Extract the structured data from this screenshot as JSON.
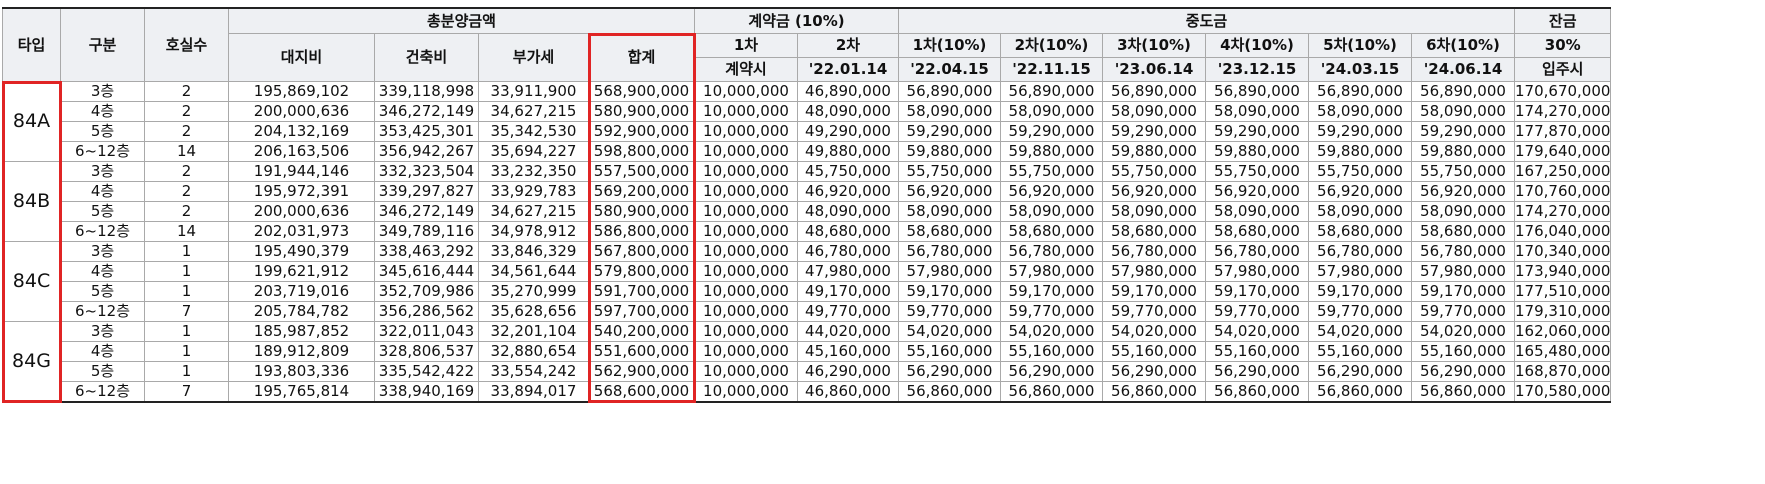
{
  "header": {
    "type": "타입",
    "gubun": "구분",
    "units": "호실수",
    "total_group": "총분양금액",
    "land": "대지비",
    "building": "건축비",
    "vat": "부가세",
    "sum": "합계",
    "deposit_group": "계약금  (10%)",
    "dep1": "1차",
    "dep1_sub": "계약시",
    "dep2": "2차",
    "dep2_sub": "'22.01.14",
    "mid_group": "중도금",
    "mid": [
      {
        "label": "1차(10%)",
        "date": "'22.04.15"
      },
      {
        "label": "2차(10%)",
        "date": "'22.11.15"
      },
      {
        "label": "3차(10%)",
        "date": "'23.06.14"
      },
      {
        "label": "4차(10%)",
        "date": "'23.12.15"
      },
      {
        "label": "5차(10%)",
        "date": "'24.03.15"
      },
      {
        "label": "6차(10%)",
        "date": "'24.06.14"
      }
    ],
    "balance_group": "잔금",
    "balance_pct": "30%",
    "balance_sub": "입주시"
  },
  "groups": [
    {
      "type": "84A",
      "rows": [
        [
          "3층",
          "2",
          "195,869,102",
          "339,118,998",
          "33,911,900",
          "568,900,000",
          "10,000,000",
          "46,890,000",
          "56,890,000",
          "56,890,000",
          "56,890,000",
          "56,890,000",
          "56,890,000",
          "56,890,000",
          "170,670,000"
        ],
        [
          "4층",
          "2",
          "200,000,636",
          "346,272,149",
          "34,627,215",
          "580,900,000",
          "10,000,000",
          "48,090,000",
          "58,090,000",
          "58,090,000",
          "58,090,000",
          "58,090,000",
          "58,090,000",
          "58,090,000",
          "174,270,000"
        ],
        [
          "5층",
          "2",
          "204,132,169",
          "353,425,301",
          "35,342,530",
          "592,900,000",
          "10,000,000",
          "49,290,000",
          "59,290,000",
          "59,290,000",
          "59,290,000",
          "59,290,000",
          "59,290,000",
          "59,290,000",
          "177,870,000"
        ],
        [
          "6~12층",
          "14",
          "206,163,506",
          "356,942,267",
          "35,694,227",
          "598,800,000",
          "10,000,000",
          "49,880,000",
          "59,880,000",
          "59,880,000",
          "59,880,000",
          "59,880,000",
          "59,880,000",
          "59,880,000",
          "179,640,000"
        ]
      ]
    },
    {
      "type": "84B",
      "rows": [
        [
          "3층",
          "2",
          "191,944,146",
          "332,323,504",
          "33,232,350",
          "557,500,000",
          "10,000,000",
          "45,750,000",
          "55,750,000",
          "55,750,000",
          "55,750,000",
          "55,750,000",
          "55,750,000",
          "55,750,000",
          "167,250,000"
        ],
        [
          "4층",
          "2",
          "195,972,391",
          "339,297,827",
          "33,929,783",
          "569,200,000",
          "10,000,000",
          "46,920,000",
          "56,920,000",
          "56,920,000",
          "56,920,000",
          "56,920,000",
          "56,920,000",
          "56,920,000",
          "170,760,000"
        ],
        [
          "5층",
          "2",
          "200,000,636",
          "346,272,149",
          "34,627,215",
          "580,900,000",
          "10,000,000",
          "48,090,000",
          "58,090,000",
          "58,090,000",
          "58,090,000",
          "58,090,000",
          "58,090,000",
          "58,090,000",
          "174,270,000"
        ],
        [
          "6~12층",
          "14",
          "202,031,973",
          "349,789,116",
          "34,978,912",
          "586,800,000",
          "10,000,000",
          "48,680,000",
          "58,680,000",
          "58,680,000",
          "58,680,000",
          "58,680,000",
          "58,680,000",
          "58,680,000",
          "176,040,000"
        ]
      ]
    },
    {
      "type": "84C",
      "rows": [
        [
          "3층",
          "1",
          "195,490,379",
          "338,463,292",
          "33,846,329",
          "567,800,000",
          "10,000,000",
          "46,780,000",
          "56,780,000",
          "56,780,000",
          "56,780,000",
          "56,780,000",
          "56,780,000",
          "56,780,000",
          "170,340,000"
        ],
        [
          "4층",
          "1",
          "199,621,912",
          "345,616,444",
          "34,561,644",
          "579,800,000",
          "10,000,000",
          "47,980,000",
          "57,980,000",
          "57,980,000",
          "57,980,000",
          "57,980,000",
          "57,980,000",
          "57,980,000",
          "173,940,000"
        ],
        [
          "5층",
          "1",
          "203,719,016",
          "352,709,986",
          "35,270,999",
          "591,700,000",
          "10,000,000",
          "49,170,000",
          "59,170,000",
          "59,170,000",
          "59,170,000",
          "59,170,000",
          "59,170,000",
          "59,170,000",
          "177,510,000"
        ],
        [
          "6~12층",
          "7",
          "205,784,782",
          "356,286,562",
          "35,628,656",
          "597,700,000",
          "10,000,000",
          "49,770,000",
          "59,770,000",
          "59,770,000",
          "59,770,000",
          "59,770,000",
          "59,770,000",
          "59,770,000",
          "179,310,000"
        ]
      ]
    },
    {
      "type": "84G",
      "rows": [
        [
          "3층",
          "1",
          "185,987,852",
          "322,011,043",
          "32,201,104",
          "540,200,000",
          "10,000,000",
          "44,020,000",
          "54,020,000",
          "54,020,000",
          "54,020,000",
          "54,020,000",
          "54,020,000",
          "54,020,000",
          "162,060,000"
        ],
        [
          "4층",
          "1",
          "189,912,809",
          "328,806,537",
          "32,880,654",
          "551,600,000",
          "10,000,000",
          "45,160,000",
          "55,160,000",
          "55,160,000",
          "55,160,000",
          "55,160,000",
          "55,160,000",
          "55,160,000",
          "165,480,000"
        ],
        [
          "5층",
          "1",
          "193,803,336",
          "335,542,422",
          "33,554,242",
          "562,900,000",
          "10,000,000",
          "46,290,000",
          "56,290,000",
          "56,290,000",
          "56,290,000",
          "56,290,000",
          "56,290,000",
          "56,290,000",
          "168,870,000"
        ],
        [
          "6~12층",
          "7",
          "195,765,814",
          "338,940,169",
          "33,894,017",
          "568,600,000",
          "10,000,000",
          "46,860,000",
          "56,860,000",
          "56,860,000",
          "56,860,000",
          "56,860,000",
          "56,860,000",
          "56,860,000",
          "170,580,000"
        ]
      ]
    }
  ],
  "highlight_color": "#e02424"
}
